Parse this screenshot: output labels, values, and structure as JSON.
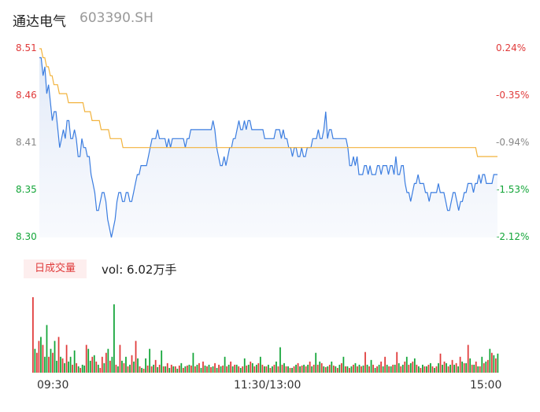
{
  "header": {
    "name": "通达电气",
    "code": "603390.SH"
  },
  "chart_data": {
    "type": "line",
    "price_axis": {
      "ticks": [
        "8.51",
        "8.46",
        "8.41",
        "8.35",
        "8.30"
      ],
      "tick_values": [
        8.51,
        8.46,
        8.41,
        8.355,
        8.3
      ],
      "tick_colors": [
        "#e03a3a",
        "#e03a3a",
        "#888888",
        "#13a538",
        "#13a538"
      ],
      "ylim": [
        8.3,
        8.51
      ]
    },
    "pct_axis": {
      "ticks": [
        "0.24%",
        "-0.35%",
        "-0.94%",
        "-1.53%",
        "-2.12%"
      ],
      "tick_colors": [
        "#e03a3a",
        "#e03a3a",
        "#888888",
        "#13a538",
        "#13a538"
      ]
    },
    "series": [
      {
        "color": "#3b7de0",
        "values": [
          8.5,
          8.5,
          8.48,
          8.49,
          8.46,
          8.47,
          8.45,
          8.43,
          8.44,
          8.44,
          8.42,
          8.4,
          8.41,
          8.42,
          8.41,
          8.43,
          8.43,
          8.41,
          8.41,
          8.42,
          8.41,
          8.39,
          8.39,
          8.41,
          8.4,
          8.4,
          8.39,
          8.39,
          8.37,
          8.36,
          8.35,
          8.33,
          8.33,
          8.34,
          8.35,
          8.35,
          8.34,
          8.32,
          8.31,
          8.3,
          8.31,
          8.32,
          8.34,
          8.35,
          8.35,
          8.34,
          8.34,
          8.35,
          8.35,
          8.34,
          8.34,
          8.35,
          8.36,
          8.37,
          8.37,
          8.38,
          8.38,
          8.38,
          8.38,
          8.39,
          8.4,
          8.41,
          8.41,
          8.41,
          8.42,
          8.41,
          8.41,
          8.41,
          8.41,
          8.4,
          8.41,
          8.4,
          8.41,
          8.41,
          8.41,
          8.41,
          8.41,
          8.41,
          8.41,
          8.4,
          8.41,
          8.41,
          8.42,
          8.42,
          8.42,
          8.42,
          8.42,
          8.42,
          8.42,
          8.42,
          8.42,
          8.42,
          8.42,
          8.42,
          8.43,
          8.42,
          8.4,
          8.39,
          8.38,
          8.38,
          8.39,
          8.38,
          8.39,
          8.4,
          8.4,
          8.41,
          8.41,
          8.42,
          8.43,
          8.42,
          8.42,
          8.43,
          8.42,
          8.43,
          8.43,
          8.42,
          8.42,
          8.42,
          8.42,
          8.42,
          8.42,
          8.42,
          8.41,
          8.41,
          8.41,
          8.41,
          8.41,
          8.41,
          8.42,
          8.42,
          8.42,
          8.41,
          8.42,
          8.41,
          8.41,
          8.4,
          8.4,
          8.39,
          8.4,
          8.4,
          8.39,
          8.39,
          8.4,
          8.39,
          8.39,
          8.4,
          8.4,
          8.4,
          8.41,
          8.41,
          8.41,
          8.42,
          8.41,
          8.41,
          8.42,
          8.44,
          8.41,
          8.42,
          8.42,
          8.41,
          8.41,
          8.41,
          8.41,
          8.41,
          8.41,
          8.41,
          8.41,
          8.4,
          8.38,
          8.38,
          8.39,
          8.38,
          8.39,
          8.37,
          8.37,
          8.37,
          8.38,
          8.38,
          8.37,
          8.38,
          8.37,
          8.37,
          8.37,
          8.38,
          8.38,
          8.37,
          8.38,
          8.38,
          8.38,
          8.37,
          8.38,
          8.38,
          8.37,
          8.39,
          8.37,
          8.37,
          8.38,
          8.38,
          8.36,
          8.35,
          8.35,
          8.34,
          8.35,
          8.36,
          8.36,
          8.37,
          8.36,
          8.36,
          8.36,
          8.35,
          8.35,
          8.34,
          8.35,
          8.35,
          8.35,
          8.35,
          8.36,
          8.35,
          8.35,
          8.35,
          8.34,
          8.33,
          8.33,
          8.34,
          8.35,
          8.35,
          8.34,
          8.33,
          8.34,
          8.34,
          8.35,
          8.35,
          8.36,
          8.36,
          8.36,
          8.35,
          8.36,
          8.36,
          8.37,
          8.36,
          8.37,
          8.37,
          8.36,
          8.36,
          8.36,
          8.36,
          8.37,
          8.37,
          8.37
        ]
      },
      {
        "color": "#f2b33d",
        "values": [
          8.51,
          8.51,
          8.5,
          8.5,
          8.49,
          8.49,
          8.48,
          8.48,
          8.47,
          8.47,
          8.47,
          8.46,
          8.46,
          8.46,
          8.46,
          8.46,
          8.45,
          8.45,
          8.45,
          8.45,
          8.45,
          8.45,
          8.45,
          8.45,
          8.45,
          8.44,
          8.44,
          8.44,
          8.44,
          8.43,
          8.43,
          8.43,
          8.43,
          8.43,
          8.42,
          8.42,
          8.42,
          8.42,
          8.42,
          8.41,
          8.41,
          8.41,
          8.41,
          8.41,
          8.41,
          8.41,
          8.4,
          8.4,
          8.4,
          8.4,
          8.4,
          8.4,
          8.4,
          8.4,
          8.4,
          8.4,
          8.4,
          8.4,
          8.4,
          8.4,
          8.4,
          8.4,
          8.4,
          8.4,
          8.4,
          8.4,
          8.4,
          8.4,
          8.4,
          8.4,
          8.4,
          8.4,
          8.4,
          8.4,
          8.4,
          8.4,
          8.4,
          8.4,
          8.4,
          8.4,
          8.4,
          8.4,
          8.4,
          8.4,
          8.4,
          8.4,
          8.4,
          8.4,
          8.4,
          8.4,
          8.4,
          8.4,
          8.4,
          8.4,
          8.4,
          8.4,
          8.4,
          8.4,
          8.4,
          8.4,
          8.4,
          8.4,
          8.4,
          8.4,
          8.4,
          8.4,
          8.4,
          8.4,
          8.4,
          8.4,
          8.4,
          8.4,
          8.4,
          8.4,
          8.4,
          8.4,
          8.4,
          8.4,
          8.4,
          8.4,
          8.4,
          8.4,
          8.4,
          8.4,
          8.4,
          8.4,
          8.4,
          8.4,
          8.4,
          8.4,
          8.4,
          8.4,
          8.4,
          8.4,
          8.4,
          8.4,
          8.4,
          8.4,
          8.4,
          8.4,
          8.4,
          8.4,
          8.4,
          8.4,
          8.4,
          8.4,
          8.4,
          8.4,
          8.4,
          8.4,
          8.4,
          8.4,
          8.4,
          8.4,
          8.4,
          8.4,
          8.4,
          8.4,
          8.4,
          8.4,
          8.4,
          8.4,
          8.4,
          8.4,
          8.4,
          8.4,
          8.4,
          8.4,
          8.4,
          8.4,
          8.4,
          8.4,
          8.4,
          8.4,
          8.4,
          8.4,
          8.4,
          8.4,
          8.4,
          8.4,
          8.4,
          8.4,
          8.4,
          8.4,
          8.4,
          8.4,
          8.4,
          8.4,
          8.4,
          8.4,
          8.4,
          8.4,
          8.4,
          8.4,
          8.4,
          8.4,
          8.4,
          8.4,
          8.4,
          8.4,
          8.4,
          8.4,
          8.4,
          8.4,
          8.4,
          8.4,
          8.4,
          8.4,
          8.4,
          8.4,
          8.4,
          8.4,
          8.4,
          8.4,
          8.4,
          8.4,
          8.4,
          8.4,
          8.4,
          8.4,
          8.4,
          8.4,
          8.4,
          8.4,
          8.4,
          8.4,
          8.4,
          8.4,
          8.4,
          8.4,
          8.4,
          8.4,
          8.4,
          8.4,
          8.4,
          8.4,
          8.4,
          8.4,
          8.4,
          8.4,
          8.4,
          8.39,
          8.39,
          8.39,
          8.39,
          8.39,
          8.39,
          8.39,
          8.39,
          8.39,
          8.39,
          8.39,
          8.39
        ]
      }
    ],
    "volume": {
      "label": "日成交量",
      "summary": "vol: 6.02万手",
      "up_color": "#e03a3a",
      "down_color": "#13a538",
      "values": [
        95,
        30,
        25,
        40,
        45,
        35,
        20,
        60,
        20,
        30,
        25,
        40,
        15,
        45,
        20,
        18,
        12,
        35,
        14,
        20,
        10,
        28,
        12,
        8,
        6,
        10,
        9,
        35,
        30,
        15,
        20,
        22,
        14,
        10,
        6,
        20,
        12,
        25,
        30,
        15,
        20,
        86,
        10,
        8,
        35,
        15,
        12,
        20,
        8,
        10,
        22,
        14,
        40,
        18,
        8,
        6,
        5,
        18,
        9,
        30,
        8,
        10,
        16,
        7,
        10,
        28,
        8,
        8,
        12,
        6,
        10,
        8,
        8,
        5,
        9,
        12,
        6,
        8,
        9,
        10,
        9,
        25,
        8,
        10,
        12,
        6,
        14,
        9,
        8,
        10,
        7,
        8,
        12,
        6,
        10,
        8,
        9,
        20,
        8,
        10,
        14,
        8,
        10,
        10,
        8,
        6,
        8,
        18,
        9,
        10,
        14,
        12,
        8,
        10,
        12,
        20,
        10,
        8,
        8,
        10,
        6,
        8,
        10,
        14,
        8,
        32,
        10,
        12,
        8,
        8,
        6,
        6,
        8,
        10,
        12,
        8,
        9,
        10,
        8,
        10,
        14,
        8,
        10,
        25,
        10,
        14,
        12,
        8,
        7,
        8,
        10,
        14,
        9,
        8,
        6,
        10,
        12,
        20,
        8,
        8,
        6,
        8,
        10,
        12,
        8,
        10,
        8,
        9,
        26,
        10,
        8,
        16,
        10,
        6,
        8,
        10,
        14,
        8,
        20,
        10,
        8,
        8,
        10,
        10,
        26,
        12,
        8,
        10,
        14,
        20,
        10,
        12,
        14,
        18,
        10,
        8,
        6,
        10,
        8,
        8,
        10,
        12,
        8,
        6,
        8,
        12,
        24,
        10,
        14,
        12,
        8,
        10,
        16,
        10,
        12,
        8,
        20,
        14,
        12,
        12,
        35,
        18,
        10,
        10,
        14,
        8,
        8,
        20,
        12,
        14,
        16,
        30,
        25,
        22,
        18,
        24
      ],
      "up_flags": [
        1,
        0,
        1,
        1,
        0,
        1,
        0,
        0,
        1,
        0,
        1,
        0,
        0,
        1,
        0,
        1,
        0,
        1,
        0,
        0,
        1,
        0,
        1,
        0,
        1,
        0,
        0,
        1,
        0,
        0,
        1,
        0,
        1,
        0,
        1,
        1,
        0,
        1,
        0,
        1,
        0,
        0,
        1,
        0,
        1,
        0,
        1,
        0,
        1,
        0,
        1,
        0,
        1,
        0,
        1,
        0,
        1,
        0,
        1,
        0,
        1,
        0,
        1,
        0,
        1,
        0,
        1,
        0,
        1,
        0,
        1,
        0,
        1,
        0,
        1,
        0,
        1,
        0,
        1,
        0,
        1,
        0,
        1,
        0,
        1,
        0,
        1,
        0,
        1,
        0,
        1,
        0,
        1,
        0,
        1,
        0,
        1,
        0,
        1,
        0,
        1,
        0,
        1,
        0,
        1,
        0,
        1,
        0,
        1,
        0,
        1,
        0,
        1,
        0,
        1,
        0,
        1,
        0,
        1,
        0,
        1,
        0,
        1,
        0,
        1,
        0,
        1,
        0,
        1,
        0,
        1,
        0,
        1,
        0,
        1,
        0,
        1,
        0,
        1,
        0,
        1,
        0,
        1,
        0,
        1,
        0,
        1,
        0,
        1,
        0,
        1,
        0,
        1,
        0,
        1,
        0,
        1,
        0,
        1,
        0,
        1,
        0,
        1,
        0,
        1,
        0,
        1,
        0,
        1,
        0,
        1,
        0,
        1,
        0,
        1,
        0,
        1,
        0,
        1,
        0,
        1,
        0,
        1,
        0,
        1,
        0,
        1,
        0,
        1,
        0,
        1,
        0,
        1,
        0,
        1,
        0,
        1,
        0,
        1,
        0,
        1,
        0,
        1,
        0,
        1,
        0,
        1,
        0,
        1,
        0,
        1,
        0,
        1,
        0,
        1,
        0,
        1,
        0,
        1,
        0,
        1,
        0,
        1,
        0,
        1,
        0,
        1,
        0,
        1,
        0,
        1,
        0,
        1,
        0,
        1,
        0,
        1,
        0,
        1,
        0,
        1,
        0,
        1,
        0,
        1,
        0,
        1
      ]
    },
    "time_ticks": [
      "09:30",
      "11:30/13:00",
      "15:00"
    ]
  }
}
